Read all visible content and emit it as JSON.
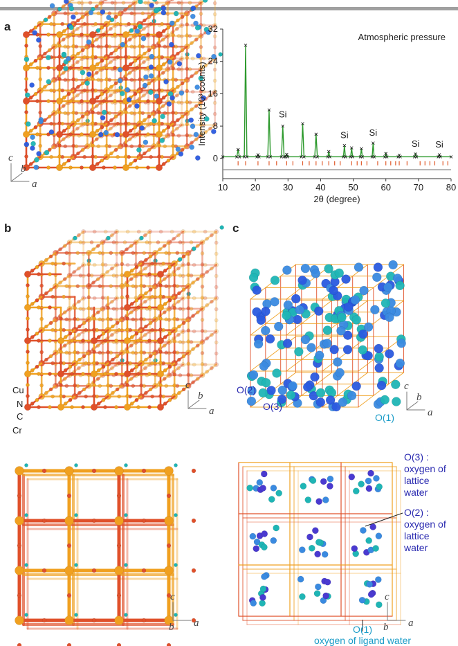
{
  "panel_labels": [
    "a",
    "b",
    "c"
  ],
  "chart_data": {
    "type": "line",
    "annotation": "Atmospheric pressure",
    "x_label": "2θ (degree)",
    "y_label": "Intensity (10³ counts)",
    "xlim": [
      10,
      80
    ],
    "xticks": [
      10,
      20,
      30,
      40,
      50,
      60,
      70,
      80
    ],
    "ylim": [
      -5,
      32
    ],
    "yticks": [
      0,
      8,
      16,
      24,
      32
    ],
    "series": [
      {
        "color": "#2e9a2e",
        "marker_color": "#111111",
        "x": [
          10,
          14.3,
          14.7,
          15.1,
          16.6,
          17.0,
          17.4,
          20.5,
          20.8,
          21.1,
          23.8,
          24.2,
          24.6,
          28.0,
          28.4,
          28.8,
          29.3,
          29.6,
          29.9,
          34.1,
          34.5,
          34.9,
          38.2,
          38.6,
          39.0,
          42.2,
          42.5,
          42.8,
          47.0,
          47.3,
          47.6,
          49.2,
          49.5,
          49.8,
          52.2,
          52.5,
          52.8,
          55.8,
          56.1,
          56.4,
          59.7,
          60.0,
          60.3,
          63.8,
          64.1,
          64.4,
          68.8,
          69.1,
          69.4,
          76.1,
          76.4,
          76.7,
          80
        ],
        "values": [
          0.4,
          0.4,
          2.2,
          0.4,
          0.4,
          28,
          0.4,
          0.4,
          0.9,
          0.4,
          0.4,
          12,
          0.4,
          0.4,
          8,
          0.4,
          0.4,
          1,
          0.4,
          0.4,
          8.6,
          0.4,
          0.4,
          6,
          0.4,
          0.4,
          1.7,
          0.4,
          0.4,
          3.2,
          0.4,
          0.4,
          2.6,
          0.4,
          0.4,
          2.4,
          0.4,
          0.4,
          3.8,
          0.4,
          0.4,
          1.2,
          0.4,
          0.4,
          0.8,
          0.4,
          0.4,
          1.1,
          0.4,
          0.4,
          0.9,
          0.4,
          0.4
        ]
      },
      {
        "color": "#8a8a8a",
        "x": [
          10,
          80
        ],
        "values": [
          -2.8,
          -2.8
        ]
      }
    ],
    "reflections": {
      "color": "#e05a2a",
      "x": [
        14.7,
        17.0,
        20.8,
        24.2,
        26.5,
        29.6,
        31.5,
        34.5,
        36.5,
        38.6,
        40.5,
        42.5,
        44.3,
        46.0,
        49.5,
        51.2,
        52.5,
        54.2,
        57.5,
        60.0,
        61.5,
        63.0,
        64.1,
        66.5,
        70.5,
        72.0,
        73.5,
        75.0,
        77.5,
        79.0
      ]
    },
    "peak_labels": [
      {
        "text": "Si",
        "x": 28.4,
        "y": 10.2
      },
      {
        "text": "Si",
        "x": 47.3,
        "y": 5.0
      },
      {
        "text": "Si",
        "x": 56.1,
        "y": 5.6
      },
      {
        "text": "Si",
        "x": 69.1,
        "y": 2.9
      },
      {
        "text": "Si",
        "x": 76.4,
        "y": 2.7
      }
    ]
  },
  "structures": [
    {
      "axes": [
        "c",
        "b",
        "a"
      ]
    },
    {
      "axes": [
        "c",
        "b",
        "a"
      ]
    },
    {
      "axes": [
        "c",
        "b",
        "a"
      ]
    },
    {
      "axes": [
        "c",
        "b",
        "a"
      ]
    },
    {
      "axes": [
        "c",
        "b",
        "a"
      ]
    }
  ],
  "atom_labels": [
    "Cu",
    "N",
    "C",
    "Cr"
  ],
  "site_labels": [
    "O(2)",
    "O(3)",
    "O(1)"
  ],
  "annotations": [
    {
      "label": "O(3) :",
      "lines": [
        "oxygen of",
        "lattice",
        "water"
      ]
    },
    {
      "label": "O(2) :",
      "lines": [
        "oxygen of",
        "lattice",
        "water"
      ]
    },
    {
      "label": "O(1)",
      "lines": [
        "oxygen of ligand water"
      ]
    }
  ]
}
